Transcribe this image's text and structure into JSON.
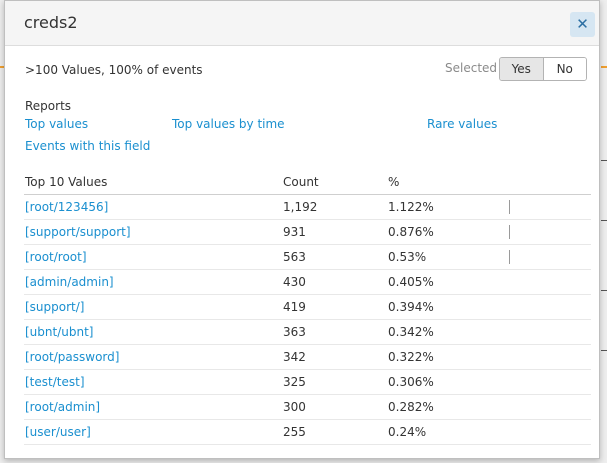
{
  "modal": {
    "title": "creds2",
    "summary": ">100 Values, 100% of events",
    "selected_label": "Selected",
    "toggle": {
      "yes": "Yes",
      "no": "No",
      "selected": "Yes"
    },
    "reports": {
      "heading": "Reports",
      "links": [
        "Top values",
        "Top values by time",
        "Rare values",
        "Events with this field"
      ]
    },
    "table": {
      "headers": [
        "Top 10 Values",
        "Count",
        "%"
      ],
      "rows": [
        {
          "value": "[root/123456]",
          "count": "1,192",
          "percent": "1.122%"
        },
        {
          "value": "[support/support]",
          "count": "931",
          "percent": "0.876%"
        },
        {
          "value": "[root/root]",
          "count": "563",
          "percent": "0.53%"
        },
        {
          "value": "[admin/admin]",
          "count": "430",
          "percent": "0.405%"
        },
        {
          "value": "[support/]",
          "count": "419",
          "percent": "0.394%"
        },
        {
          "value": "[ubnt/ubnt]",
          "count": "363",
          "percent": "0.342%"
        },
        {
          "value": "[root/password]",
          "count": "342",
          "percent": "0.322%"
        },
        {
          "value": "[test/test]",
          "count": "325",
          "percent": "0.306%"
        },
        {
          "value": "[root/admin]",
          "count": "300",
          "percent": "0.282%"
        },
        {
          "value": "[user/user]",
          "count": "255",
          "percent": "0.24%"
        }
      ]
    }
  },
  "colors": {
    "link": "#1a8fcf",
    "close_button_bg": "#d6e6f2",
    "header_bg": "#f5f5f5"
  },
  "icons": {
    "close": "close-icon"
  }
}
